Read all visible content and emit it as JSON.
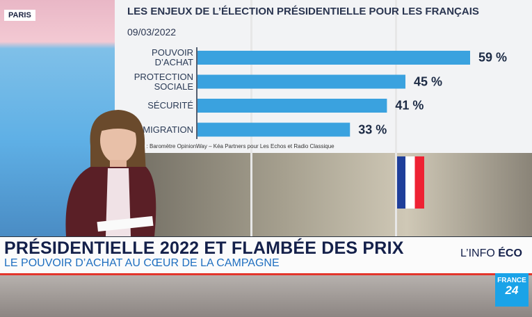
{
  "location": "PARIS",
  "chart_data": {
    "type": "bar",
    "orientation": "horizontal",
    "title": "LES ENJEUX DE L’ÉLECTION PRÉSIDENTIELLE POUR LES FRANÇAIS",
    "subtitle": "09/03/2022",
    "categories": [
      "POUVOIR\nD’ACHAT",
      "PROTECTION\nSOCIALE",
      "SÉCURITÉ",
      "IMMIGRATION"
    ],
    "values": [
      59,
      45,
      41,
      33
    ],
    "value_labels": [
      "59 %",
      "45 %",
      "41 %",
      "33 %"
    ],
    "color": "#3aa2df",
    "source": "Source : Baromètre OpinionWay – Kéa Partners pour Les Echos et Radio Classique"
  },
  "lower_third": {
    "headline": "PRÉSIDENTIELLE 2022 ET FLAMBÉE DES PRIX",
    "subheadline": "LE POUVOIR D’ACHAT AU CŒUR DE LA CAMPAGNE",
    "segment": "L’INFO",
    "segment_bold": "ÉCO"
  },
  "logo": {
    "line1": "FRANCE",
    "line2": "24"
  }
}
